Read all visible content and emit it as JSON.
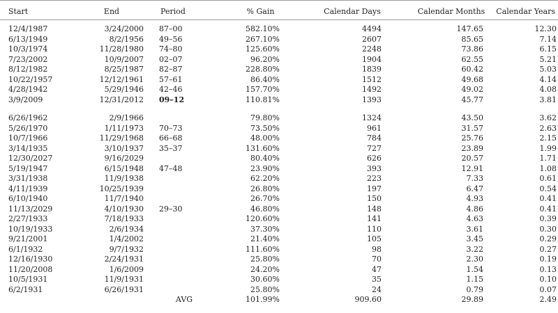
{
  "table": {
    "headers": {
      "start": "Start",
      "end": "End",
      "period": "Period",
      "gain": "% Gain",
      "days": "Calendar Days",
      "months": "Calendar Months",
      "years": "Calendar Years"
    },
    "group1": [
      {
        "start": "12/4/1987",
        "end": "3/24/2000",
        "period": "87–00",
        "gain": "582.10%",
        "days": "4494",
        "months": "147.65",
        "years": "12.30"
      },
      {
        "start": "6/13/1949",
        "end": "8/2/1956",
        "period": "49–56",
        "gain": "267.10%",
        "days": "2607",
        "months": "85.65",
        "years": "7.14"
      },
      {
        "start": "10/3/1974",
        "end": "11/28/1980",
        "period": "74–80",
        "gain": "125.60%",
        "days": "2248",
        "months": "73.86",
        "years": "6.15"
      },
      {
        "start": "7/23/2002",
        "end": "10/9/2007",
        "period": "02–07",
        "gain": "96.20%",
        "days": "1904",
        "months": "62.55",
        "years": "5.21"
      },
      {
        "start": "8/12/1982",
        "end": "8/25/1987",
        "period": "82–87",
        "gain": "228.80%",
        "days": "1839",
        "months": "60.42",
        "years": "5.03"
      },
      {
        "start": "10/22/1957",
        "end": "12/12/1961",
        "period": "57–61",
        "gain": "86.40%",
        "days": "1512",
        "months": "49.68",
        "years": "4.14"
      },
      {
        "start": "4/28/1942",
        "end": "5/29/1946",
        "period": "42–46",
        "gain": "157.70%",
        "days": "1492",
        "months": "49.02",
        "years": "4.08"
      },
      {
        "start": "3/9/2009",
        "end": "12/31/2012",
        "period": "09–12",
        "gain": "110.81%",
        "days": "1393",
        "months": "45.77",
        "years": "3.81"
      }
    ],
    "group2": [
      {
        "start": "6/26/1962",
        "end": "2/9/1966",
        "period": "",
        "gain": "79.80%",
        "days": "1324",
        "months": "43.50",
        "years": "3.62"
      },
      {
        "start": "5/26/1970",
        "end": "1/11/1973",
        "period": "70–73",
        "gain": "73.50%",
        "days": "961",
        "months": "31.57",
        "years": "2.63"
      },
      {
        "start": "10/7/1966",
        "end": "11/29/1968",
        "period": "66–68",
        "gain": "48.00%",
        "days": "784",
        "months": "25.76",
        "years": "2.15"
      },
      {
        "start": "3/14/1935",
        "end": "3/10/1937",
        "period": "35–37",
        "gain": "131.60%",
        "days": "727",
        "months": "23.89",
        "years": "1.99"
      },
      {
        "start": "12/30/2027",
        "end": "9/16/2029",
        "period": "",
        "gain": "80.40%",
        "days": "626",
        "months": "20.57",
        "years": "1.71"
      },
      {
        "start": "5/19/1947",
        "end": "6/15/1948",
        "period": "47–48",
        "gain": "23.90%",
        "days": "393",
        "months": "12.91",
        "years": "1.08"
      },
      {
        "start": "3/31/1938",
        "end": "11/9/1938",
        "period": "",
        "gain": "62.20%",
        "days": "223",
        "months": "7.33",
        "years": "0.61"
      },
      {
        "start": "4/11/1939",
        "end": "10/25/1939",
        "period": "",
        "gain": "26.80%",
        "days": "197",
        "months": "6.47",
        "years": "0.54"
      },
      {
        "start": "6/10/1940",
        "end": "11/7/1940",
        "period": "",
        "gain": "26.70%",
        "days": "150",
        "months": "4.93",
        "years": "0.41"
      },
      {
        "start": "11/13/2029",
        "end": "4/10/1930",
        "period": "29–30",
        "gain": "46.80%",
        "days": "148",
        "months": "4.86",
        "years": "0.41"
      },
      {
        "start": "2/27/1933",
        "end": "7/18/1933",
        "period": "",
        "gain": "120.60%",
        "days": "141",
        "months": "4.63",
        "years": "0.39"
      },
      {
        "start": "10/19/1933",
        "end": "2/6/1934",
        "period": "",
        "gain": "37.30%",
        "days": "110",
        "months": "3.61",
        "years": "0.30"
      },
      {
        "start": "9/21/2001",
        "end": "1/4/2002",
        "period": "",
        "gain": "21.40%",
        "days": "105",
        "months": "3.45",
        "years": "0.29"
      },
      {
        "start": "6/1/1932",
        "end": "9/7/1932",
        "period": "",
        "gain": "111.60%",
        "days": "98",
        "months": "3.22",
        "years": "0.27"
      },
      {
        "start": "12/16/1930",
        "end": "2/24/1931",
        "period": "",
        "gain": "25.80%",
        "days": "70",
        "months": "2.30",
        "years": "0.19"
      },
      {
        "start": "11/20/2008",
        "end": "1/6/2009",
        "period": "",
        "gain": "24.20%",
        "days": "47",
        "months": "1.54",
        "years": "0.13"
      },
      {
        "start": "10/5/1931",
        "end": "11/9/1931",
        "period": "",
        "gain": "30.60%",
        "days": "35",
        "months": "1.15",
        "years": "0.10"
      },
      {
        "start": "6/2/1931",
        "end": "6/26/1931",
        "period": "",
        "gain": "25.80%",
        "days": "24",
        "months": "0.79",
        "years": "0.07"
      }
    ],
    "average": {
      "label": "AVG",
      "gain": "101.99%",
      "days": "909.60",
      "months": "29.89",
      "years": "2.49"
    }
  }
}
